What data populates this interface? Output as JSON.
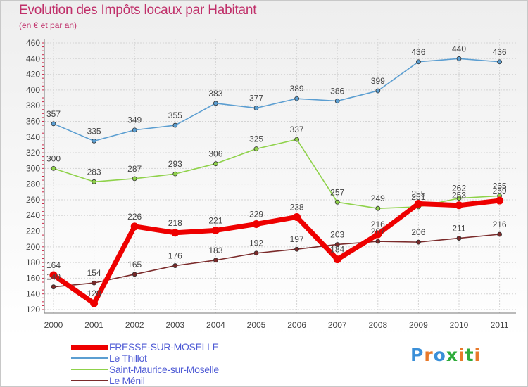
{
  "title": "Evolution des Impôts locaux par Habitant",
  "subtitle": "(en € et par an)",
  "logo_text": "Proxiti",
  "logo_colors": [
    "#3a8fd8",
    "#e8792a",
    "#3a8fd8",
    "#2eab3b",
    "#e8792a",
    "#2eab3b",
    "#e8792a"
  ],
  "chart_data": {
    "type": "line",
    "title": "Evolution des Impôts locaux par Habitant",
    "subtitle": "(en € et par an)",
    "x": [
      "2000",
      "2001",
      "2002",
      "2003",
      "2004",
      "2005",
      "2006",
      "2007",
      "2008",
      "2009",
      "2010",
      "2011"
    ],
    "ylim": [
      120,
      460
    ],
    "yticks": [
      120,
      140,
      160,
      180,
      200,
      220,
      240,
      260,
      280,
      300,
      320,
      340,
      360,
      380,
      400,
      420,
      440,
      460
    ],
    "grid": true,
    "legend_position": "bottom-left",
    "series": [
      {
        "name": "FRESSE-SUR-MOSELLE",
        "color": "#ee0000",
        "values": [
          164,
          128,
          226,
          218,
          221,
          229,
          238,
          184,
          216,
          255,
          253,
          259
        ],
        "labels": [
          "164",
          "128",
          "226",
          "218",
          "221",
          "229",
          "238",
          "184",
          "216",
          "255",
          "253",
          "259"
        ]
      },
      {
        "name": "Le Thillot",
        "color": "#5b9ed1",
        "values": [
          357,
          335,
          349,
          355,
          383,
          377,
          389,
          386,
          399,
          436,
          440,
          436
        ],
        "labels": [
          "357",
          "335",
          "349",
          "355",
          "383",
          "377",
          "389",
          "386",
          "399",
          "436",
          "440",
          "436"
        ]
      },
      {
        "name": "Saint-Maurice-sur-Moselle",
        "color": "#8fd24a",
        "values": [
          300,
          283,
          287,
          293,
          306,
          325,
          337,
          257,
          249,
          251,
          262,
          265
        ],
        "labels": [
          "300",
          "283",
          "287",
          "293",
          "306",
          "325",
          "337",
          "257",
          "249",
          "251",
          "262",
          "265"
        ]
      },
      {
        "name": "Le Ménil",
        "color": "#7a2a2a",
        "values": [
          149,
          154,
          165,
          176,
          183,
          192,
          197,
          203,
          207,
          206,
          211,
          216
        ],
        "labels": [
          "149",
          "154",
          "165",
          "176",
          "183",
          "192",
          "197",
          "203",
          "207",
          "206",
          "211",
          "216"
        ]
      }
    ]
  }
}
